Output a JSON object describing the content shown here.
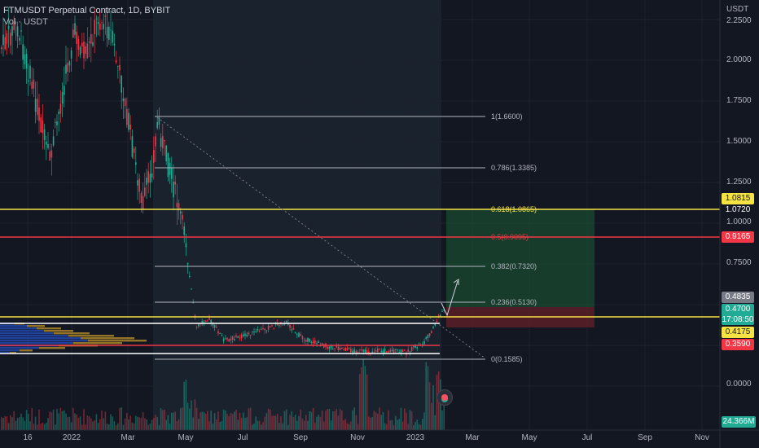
{
  "header": {
    "title": "FTMUSDT Perpetual Contract, 1D, BYBIT",
    "volume_label": "Vol · USDT"
  },
  "price_axis": {
    "unit": "USDT",
    "ticks": [
      "2.2500",
      "2.0000",
      "1.7500",
      "1.5000",
      "1.2500",
      "1.0000",
      "0.7500",
      "0.0000"
    ]
  },
  "time_axis": {
    "labels": [
      "16",
      "2022",
      "Mar",
      "May",
      "Jul",
      "Sep",
      "Nov",
      "2023",
      "Mar",
      "May",
      "Jul",
      "Sep",
      "Nov"
    ]
  },
  "fib": [
    {
      "label": "1(1.6600)",
      "color": "#b2b5be"
    },
    {
      "label": "0.786(1.3385)",
      "color": "#b2b5be"
    },
    {
      "label": "0.618(1.0865)",
      "color": "#f5e342"
    },
    {
      "label": "0.5(0.9095)",
      "color": "#f23645"
    },
    {
      "label": "0.382(0.7320)",
      "color": "#b2b5be"
    },
    {
      "label": "0.236(0.5130)",
      "color": "#b2b5be"
    },
    {
      "label": "0(0.1585)",
      "color": "#b2b5be"
    }
  ],
  "price_tags": [
    {
      "text": "1.0815",
      "bg": "#f5e342",
      "fg": "#131722"
    },
    {
      "text": "1.0720",
      "bg": "#131722",
      "fg": "#ffffff"
    },
    {
      "text": "0.9165",
      "bg": "#f23645",
      "fg": "#ffffff"
    },
    {
      "text": "0.4835",
      "bg": "#787b86",
      "fg": "#ffffff"
    },
    {
      "text": "0.4700",
      "countdown": "17:08:50",
      "bg": "#22ab94",
      "fg": "#ffffff"
    },
    {
      "text": "0.4175",
      "bg": "#f5e342",
      "fg": "#131722"
    },
    {
      "text": "0.3590",
      "bg": "#f23645",
      "fg": "#ffffff"
    },
    {
      "text": "24.366M",
      "bg": "#22ab94",
      "fg": "#ffffff"
    }
  ],
  "colors": {
    "background": "#131722",
    "up": "#22ab94",
    "down": "#f23645",
    "yellow_line": "#f5e342",
    "red_line": "#f23645",
    "white_line": "#ffffff"
  },
  "icons": [
    "settings-icon",
    "forecast-arrow-icon"
  ]
}
